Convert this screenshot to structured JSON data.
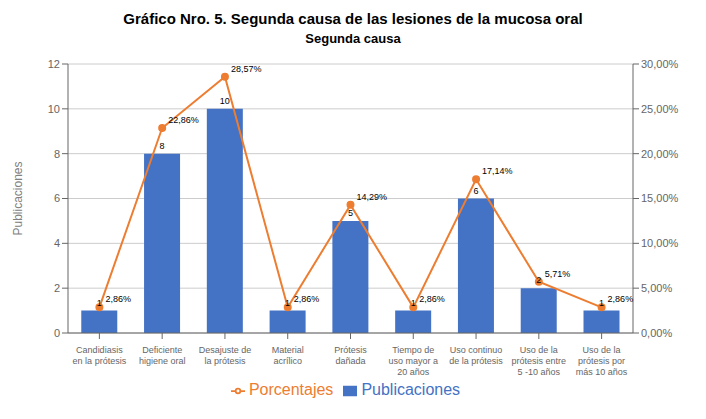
{
  "chart_data": {
    "type": "bar",
    "title": "Gráfico Nro. 5. Segunda causa de las lesiones de la mucosa oral",
    "subtitle": "Segunda causa",
    "categories": [
      "Candidiasis\nen la prótesis",
      "Deficiente\nhigiene oral",
      "Desajuste de\nla prótesis",
      "Material\nacrílico",
      "Prótesis\ndañada",
      "Tiempo de\nuso mayor a\n20 años",
      "Uso continuo\nde la prótesis",
      "Uso de la\nprótesis entre\n5 -10 años",
      "Uso de la\nprótesis por\nmás 10 años"
    ],
    "series": [
      {
        "name": "Publicaciones",
        "type": "bar",
        "color": "#4472C4",
        "values": [
          1,
          8,
          10,
          1,
          5,
          1,
          6,
          2,
          1
        ]
      },
      {
        "name": "Porcentajes",
        "type": "line",
        "color": "#ED7D31",
        "axis": "y2",
        "marker": "circle",
        "values": [
          2.86,
          22.86,
          28.57,
          2.86,
          14.29,
          2.86,
          17.14,
          5.71,
          2.86
        ],
        "value_labels": [
          "2,86%",
          "22,86%",
          "28,57%",
          "2,86%",
          "14,29%",
          "2,86%",
          "17,14%",
          "5,71%",
          "2,86%"
        ]
      }
    ],
    "ylabel": "Publicaciones",
    "ylim": [
      0,
      12
    ],
    "yticks": [
      0,
      2,
      4,
      6,
      8,
      10,
      12
    ],
    "y2lim": [
      0,
      30
    ],
    "y2ticks": [
      {
        "value": 0,
        "label": "0,00%"
      },
      {
        "value": 5,
        "label": "5,00%"
      },
      {
        "value": 10,
        "label": "10,00%"
      },
      {
        "value": 15,
        "label": "15,00%"
      },
      {
        "value": 20,
        "label": "20,00%"
      },
      {
        "value": 25,
        "label": "25,00%"
      },
      {
        "value": 30,
        "label": "30,00%"
      }
    ],
    "grid": true,
    "data_labels": true,
    "legend": "bottom"
  }
}
